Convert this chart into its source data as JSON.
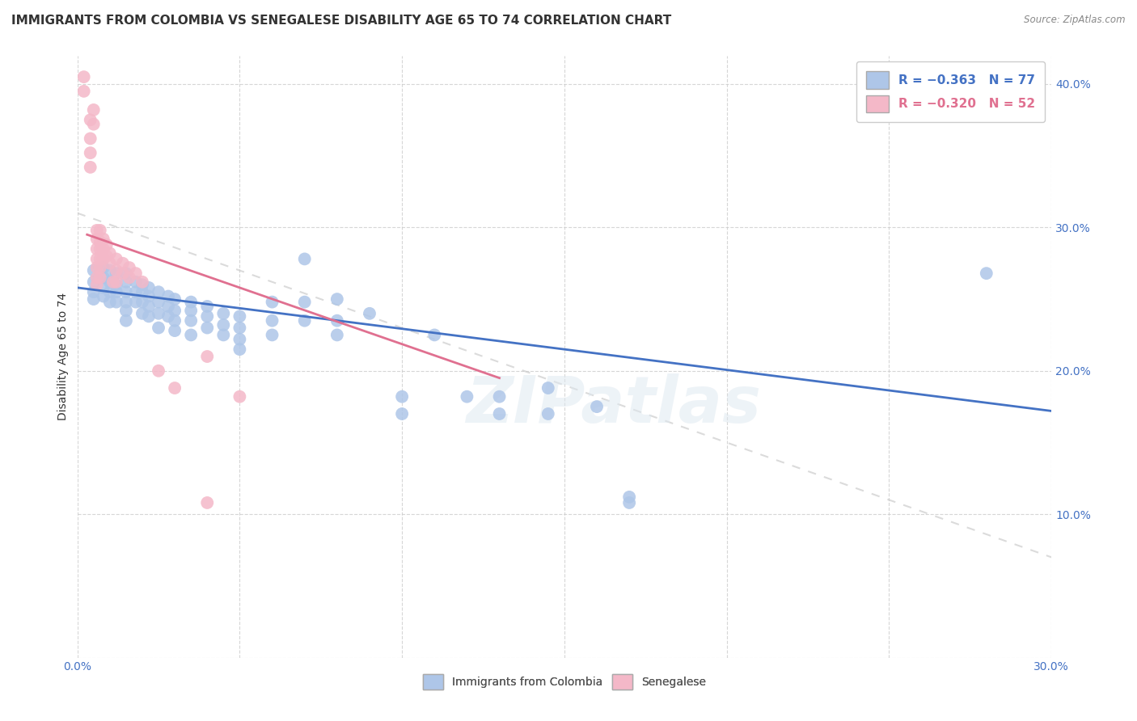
{
  "title": "IMMIGRANTS FROM COLOMBIA VS SENEGALESE DISABILITY AGE 65 TO 74 CORRELATION CHART",
  "source": "Source: ZipAtlas.com",
  "ylabel": "Disability Age 65 to 74",
  "xlim": [
    0.0,
    0.3
  ],
  "ylim": [
    0.0,
    0.42
  ],
  "xticks": [
    0.0,
    0.05,
    0.1,
    0.15,
    0.2,
    0.25,
    0.3
  ],
  "yticks": [
    0.0,
    0.1,
    0.2,
    0.3,
    0.4
  ],
  "legend_labels_bottom": [
    "Immigrants from Colombia",
    "Senegalese"
  ],
  "watermark": "ZIPatlas",
  "colombia_scatter": [
    [
      0.005,
      0.27
    ],
    [
      0.005,
      0.262
    ],
    [
      0.005,
      0.255
    ],
    [
      0.005,
      0.25
    ],
    [
      0.008,
      0.272
    ],
    [
      0.008,
      0.265
    ],
    [
      0.008,
      0.258
    ],
    [
      0.008,
      0.252
    ],
    [
      0.01,
      0.27
    ],
    [
      0.01,
      0.262
    ],
    [
      0.01,
      0.255
    ],
    [
      0.01,
      0.248
    ],
    [
      0.012,
      0.268
    ],
    [
      0.012,
      0.26
    ],
    [
      0.012,
      0.255
    ],
    [
      0.012,
      0.248
    ],
    [
      0.015,
      0.268
    ],
    [
      0.015,
      0.262
    ],
    [
      0.015,
      0.255
    ],
    [
      0.015,
      0.248
    ],
    [
      0.015,
      0.242
    ],
    [
      0.015,
      0.235
    ],
    [
      0.018,
      0.262
    ],
    [
      0.018,
      0.255
    ],
    [
      0.018,
      0.248
    ],
    [
      0.02,
      0.26
    ],
    [
      0.02,
      0.255
    ],
    [
      0.02,
      0.248
    ],
    [
      0.02,
      0.24
    ],
    [
      0.022,
      0.258
    ],
    [
      0.022,
      0.252
    ],
    [
      0.022,
      0.245
    ],
    [
      0.022,
      0.238
    ],
    [
      0.025,
      0.255
    ],
    [
      0.025,
      0.248
    ],
    [
      0.025,
      0.24
    ],
    [
      0.025,
      0.23
    ],
    [
      0.028,
      0.252
    ],
    [
      0.028,
      0.245
    ],
    [
      0.028,
      0.238
    ],
    [
      0.03,
      0.25
    ],
    [
      0.03,
      0.242
    ],
    [
      0.03,
      0.235
    ],
    [
      0.03,
      0.228
    ],
    [
      0.035,
      0.248
    ],
    [
      0.035,
      0.242
    ],
    [
      0.035,
      0.235
    ],
    [
      0.035,
      0.225
    ],
    [
      0.04,
      0.245
    ],
    [
      0.04,
      0.238
    ],
    [
      0.04,
      0.23
    ],
    [
      0.045,
      0.24
    ],
    [
      0.045,
      0.232
    ],
    [
      0.045,
      0.225
    ],
    [
      0.05,
      0.238
    ],
    [
      0.05,
      0.23
    ],
    [
      0.05,
      0.222
    ],
    [
      0.05,
      0.215
    ],
    [
      0.06,
      0.248
    ],
    [
      0.06,
      0.235
    ],
    [
      0.06,
      0.225
    ],
    [
      0.07,
      0.278
    ],
    [
      0.07,
      0.248
    ],
    [
      0.07,
      0.235
    ],
    [
      0.08,
      0.25
    ],
    [
      0.08,
      0.235
    ],
    [
      0.08,
      0.225
    ],
    [
      0.09,
      0.24
    ],
    [
      0.1,
      0.182
    ],
    [
      0.1,
      0.17
    ],
    [
      0.11,
      0.225
    ],
    [
      0.12,
      0.182
    ],
    [
      0.13,
      0.182
    ],
    [
      0.13,
      0.17
    ],
    [
      0.145,
      0.188
    ],
    [
      0.145,
      0.17
    ],
    [
      0.16,
      0.175
    ],
    [
      0.17,
      0.112
    ],
    [
      0.17,
      0.108
    ],
    [
      0.28,
      0.268
    ]
  ],
  "colombia_line": [
    [
      0.0,
      0.258
    ],
    [
      0.3,
      0.172
    ]
  ],
  "senegal_scatter": [
    [
      0.002,
      0.405
    ],
    [
      0.002,
      0.395
    ],
    [
      0.004,
      0.375
    ],
    [
      0.004,
      0.362
    ],
    [
      0.004,
      0.352
    ],
    [
      0.004,
      0.342
    ],
    [
      0.005,
      0.382
    ],
    [
      0.005,
      0.372
    ],
    [
      0.006,
      0.298
    ],
    [
      0.006,
      0.292
    ],
    [
      0.006,
      0.285
    ],
    [
      0.006,
      0.278
    ],
    [
      0.006,
      0.272
    ],
    [
      0.006,
      0.265
    ],
    [
      0.006,
      0.26
    ],
    [
      0.007,
      0.298
    ],
    [
      0.007,
      0.29
    ],
    [
      0.007,
      0.285
    ],
    [
      0.007,
      0.278
    ],
    [
      0.007,
      0.272
    ],
    [
      0.007,
      0.265
    ],
    [
      0.008,
      0.292
    ],
    [
      0.008,
      0.285
    ],
    [
      0.008,
      0.278
    ],
    [
      0.009,
      0.288
    ],
    [
      0.009,
      0.28
    ],
    [
      0.01,
      0.282
    ],
    [
      0.01,
      0.275
    ],
    [
      0.011,
      0.262
    ],
    [
      0.012,
      0.278
    ],
    [
      0.012,
      0.27
    ],
    [
      0.012,
      0.262
    ],
    [
      0.014,
      0.275
    ],
    [
      0.014,
      0.268
    ],
    [
      0.016,
      0.272
    ],
    [
      0.016,
      0.265
    ],
    [
      0.018,
      0.268
    ],
    [
      0.02,
      0.262
    ],
    [
      0.025,
      0.2
    ],
    [
      0.03,
      0.188
    ],
    [
      0.04,
      0.21
    ],
    [
      0.05,
      0.182
    ],
    [
      0.04,
      0.108
    ]
  ],
  "senegal_line": [
    [
      0.0,
      0.298
    ],
    [
      0.065,
      0.248
    ],
    [
      0.13,
      0.198
    ]
  ],
  "colombia_color": "#aec6e8",
  "senegal_color": "#f4b8c8",
  "colombia_line_color": "#4472c4",
  "senegal_line_color": "#e07090",
  "background_color": "#ffffff",
  "grid_color": "#cccccc",
  "title_fontsize": 11,
  "axis_fontsize": 10,
  "tick_fontsize": 10
}
